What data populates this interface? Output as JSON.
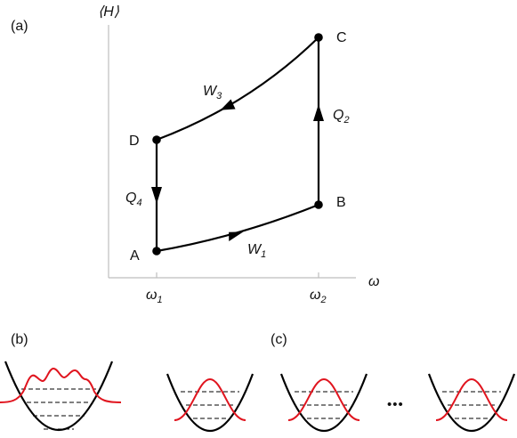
{
  "panel_a": {
    "label": "(a)",
    "y_axis_label": "⟨H⟩",
    "x_axis_label": "ω",
    "x_ticks": [
      {
        "symbol": "ω",
        "sub": "1"
      },
      {
        "symbol": "ω",
        "sub": "2"
      }
    ],
    "points": {
      "A": "A",
      "B": "B",
      "C": "C",
      "D": "D"
    },
    "edges": {
      "W1": {
        "symbol": "W",
        "sub": "1"
      },
      "Q2": {
        "symbol": "Q",
        "sub": "2"
      },
      "W3": {
        "symbol": "W",
        "sub": "3"
      },
      "Q4": {
        "symbol": "Q",
        "sub": "4"
      }
    }
  },
  "panel_b": {
    "label": "(b)"
  },
  "panel_c": {
    "label": "(c)",
    "ellipsis": "•••"
  }
}
